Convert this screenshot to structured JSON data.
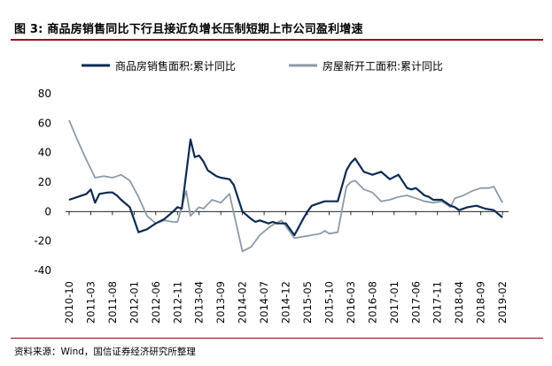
{
  "figure": {
    "title": "图 3:  商品房销售同比下行且接近负增长压制短期上市公司盈利增速",
    "source": "资料来源：Wind，国信证券经济研究所整理"
  },
  "chart_data": {
    "type": "line",
    "ylim": [
      -40,
      80
    ],
    "yticks": [
      "80",
      "60",
      "40",
      "20",
      "0",
      "-20",
      "-40"
    ],
    "ytick_values": [
      80,
      60,
      40,
      20,
      0,
      -20,
      -40
    ],
    "x_start": "2010-10",
    "x_end": "2019-03",
    "xticks": [
      "2010-10",
      "2011-03",
      "2011-08",
      "2012-01",
      "2012-06",
      "2012-11",
      "2013-04",
      "2013-09",
      "2014-02",
      "2014-07",
      "2014-12",
      "2015-05",
      "2015-10",
      "2016-03",
      "2016-08",
      "2017-01",
      "2017-06",
      "2017-11",
      "2018-04",
      "2018-09",
      "2019-02"
    ],
    "legend_position": "top",
    "grid": false,
    "series": [
      {
        "name": "商品房销售面积:累计同比",
        "color": "#0d2a52",
        "points": [
          [
            "2010-10",
            8
          ],
          [
            "2010-12",
            10
          ],
          [
            "2011-02",
            12
          ],
          [
            "2011-03",
            15
          ],
          [
            "2011-04",
            6
          ],
          [
            "2011-05",
            12
          ],
          [
            "2011-07",
            13
          ],
          [
            "2011-08",
            13
          ],
          [
            "2011-09",
            11
          ],
          [
            "2011-10",
            8
          ],
          [
            "2011-12",
            3
          ],
          [
            "2012-02",
            -14
          ],
          [
            "2012-04",
            -12
          ],
          [
            "2012-05",
            -10
          ],
          [
            "2012-06",
            -8
          ],
          [
            "2012-08",
            -5
          ],
          [
            "2012-10",
            0
          ],
          [
            "2012-11",
            3
          ],
          [
            "2012-12",
            2
          ],
          [
            "2013-02",
            49
          ],
          [
            "2013-03",
            37
          ],
          [
            "2013-04",
            38
          ],
          [
            "2013-05",
            34
          ],
          [
            "2013-06",
            28
          ],
          [
            "2013-08",
            24
          ],
          [
            "2013-09",
            23
          ],
          [
            "2013-11",
            22
          ],
          [
            "2013-12",
            18
          ],
          [
            "2014-02",
            0
          ],
          [
            "2014-04",
            -5
          ],
          [
            "2014-05",
            -7
          ],
          [
            "2014-06",
            -6
          ],
          [
            "2014-08",
            -8
          ],
          [
            "2014-09",
            -7
          ],
          [
            "2014-10",
            -8
          ],
          [
            "2014-12",
            -8
          ],
          [
            "2015-02",
            -16
          ],
          [
            "2015-04",
            -5
          ],
          [
            "2015-05",
            0
          ],
          [
            "2015-06",
            4
          ],
          [
            "2015-08",
            6
          ],
          [
            "2015-09",
            7
          ],
          [
            "2015-10",
            7
          ],
          [
            "2015-12",
            7
          ],
          [
            "2016-02",
            28
          ],
          [
            "2016-03",
            33
          ],
          [
            "2016-04",
            36
          ],
          [
            "2016-06",
            27
          ],
          [
            "2016-07",
            26
          ],
          [
            "2016-08",
            25
          ],
          [
            "2016-10",
            27
          ],
          [
            "2016-12",
            22
          ],
          [
            "2017-02",
            25
          ],
          [
            "2017-04",
            16
          ],
          [
            "2017-05",
            15
          ],
          [
            "2017-06",
            16
          ],
          [
            "2017-08",
            11
          ],
          [
            "2017-09",
            10
          ],
          [
            "2017-10",
            8
          ],
          [
            "2017-12",
            8
          ],
          [
            "2018-02",
            4
          ],
          [
            "2018-03",
            3
          ],
          [
            "2018-04",
            1
          ],
          [
            "2018-06",
            3
          ],
          [
            "2018-08",
            4
          ],
          [
            "2018-10",
            2
          ],
          [
            "2018-12",
            1
          ],
          [
            "2019-02",
            -4
          ]
        ]
      },
      {
        "name": "房屋新开工面积:累计同比",
        "color": "#8d9aa7",
        "points": [
          [
            "2010-10",
            62
          ],
          [
            "2010-12",
            48
          ],
          [
            "2011-02",
            35
          ],
          [
            "2011-04",
            23
          ],
          [
            "2011-06",
            24
          ],
          [
            "2011-08",
            23
          ],
          [
            "2011-10",
            25
          ],
          [
            "2011-12",
            21
          ],
          [
            "2012-02",
            10
          ],
          [
            "2012-04",
            -3
          ],
          [
            "2012-06",
            -8
          ],
          [
            "2012-08",
            -6
          ],
          [
            "2012-10",
            -7
          ],
          [
            "2012-11",
            -7
          ],
          [
            "2013-01",
            14
          ],
          [
            "2013-02",
            -3
          ],
          [
            "2013-04",
            3
          ],
          [
            "2013-05",
            2
          ],
          [
            "2013-07",
            8
          ],
          [
            "2013-09",
            6
          ],
          [
            "2013-11",
            12
          ],
          [
            "2014-02",
            -27
          ],
          [
            "2014-04",
            -24
          ],
          [
            "2014-06",
            -16
          ],
          [
            "2014-08",
            -11
          ],
          [
            "2014-09",
            -9
          ],
          [
            "2014-11",
            -6
          ],
          [
            "2014-12",
            -10
          ],
          [
            "2015-02",
            -18
          ],
          [
            "2015-04",
            -17
          ],
          [
            "2015-06",
            -16
          ],
          [
            "2015-08",
            -15
          ],
          [
            "2015-09",
            -13
          ],
          [
            "2015-10",
            -15
          ],
          [
            "2015-12",
            -14
          ],
          [
            "2016-02",
            17
          ],
          [
            "2016-03",
            20
          ],
          [
            "2016-04",
            21
          ],
          [
            "2016-06",
            15
          ],
          [
            "2016-08",
            13
          ],
          [
            "2016-10",
            7
          ],
          [
            "2016-12",
            8
          ],
          [
            "2017-02",
            10
          ],
          [
            "2017-04",
            11
          ],
          [
            "2017-06",
            9
          ],
          [
            "2017-08",
            7
          ],
          [
            "2017-10",
            6
          ],
          [
            "2017-12",
            7
          ],
          [
            "2018-02",
            3
          ],
          [
            "2018-03",
            9
          ],
          [
            "2018-05",
            11
          ],
          [
            "2018-07",
            14
          ],
          [
            "2018-09",
            16
          ],
          [
            "2018-11",
            16
          ],
          [
            "2018-12",
            17
          ],
          [
            "2019-02",
            6
          ]
        ]
      }
    ]
  }
}
